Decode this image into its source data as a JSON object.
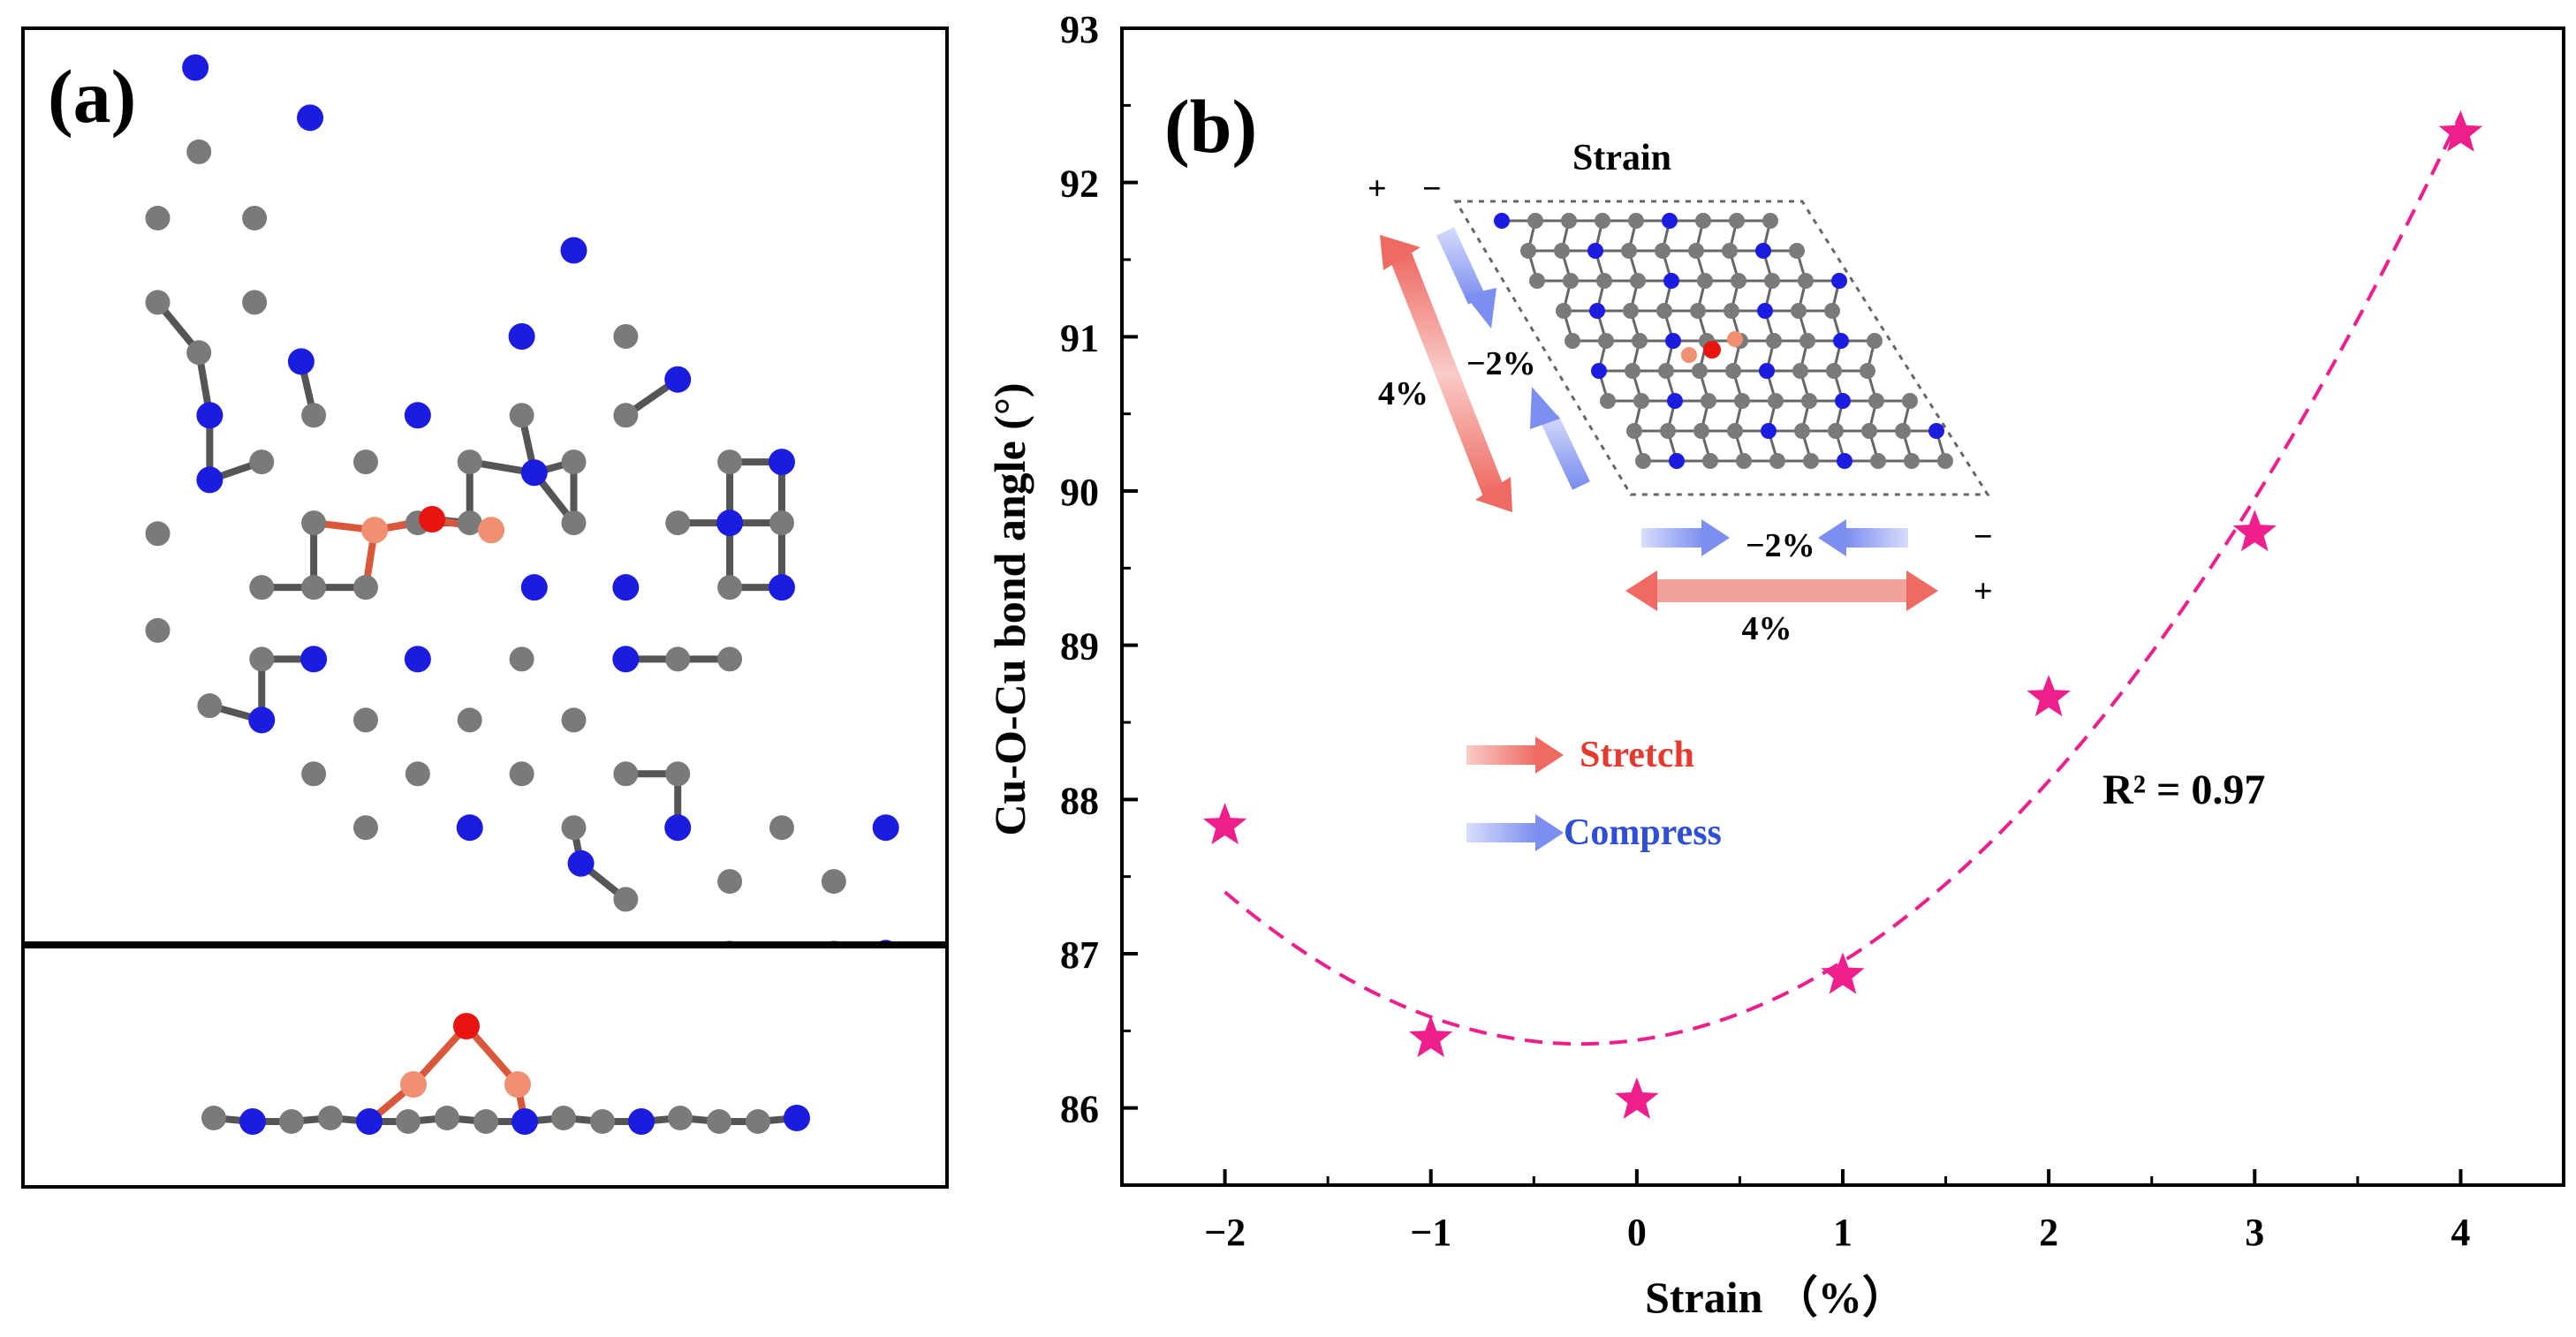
{
  "panel_a": {
    "label": "(a)"
  },
  "panel_b": {
    "label": "(b)"
  },
  "chart_data": {
    "type": "scatter",
    "title": "",
    "xlabel": "Strain （%）",
    "ylabel": "Cu-O-Cu bond angle (°)",
    "xlim": [
      -2.5,
      4.5
    ],
    "ylim": [
      85.5,
      93
    ],
    "x_ticks": [
      -2,
      -1,
      0,
      1,
      2,
      3,
      4
    ],
    "x_tick_labels": [
      "−2",
      "−1",
      "0",
      "1",
      "2",
      "3",
      "4"
    ],
    "y_ticks": [
      86,
      87,
      88,
      89,
      90,
      91,
      92,
      93
    ],
    "y_tick_labels": [
      "86",
      "87",
      "88",
      "89",
      "90",
      "91",
      "92",
      "93"
    ],
    "series": [
      {
        "name": "Cu-O-Cu bond angle",
        "marker": "star",
        "color": "#ee1e8c",
        "x": [
          -2,
          -1,
          0,
          1,
          2,
          3,
          4
        ],
        "values": [
          87.83,
          86.45,
          86.05,
          86.86,
          88.66,
          89.73,
          92.32
        ]
      }
    ],
    "fit": {
      "type": "quadratic",
      "style": "dashed",
      "color": "#ee1e8c",
      "x_range": [
        -2,
        4
      ],
      "coeffs": [
        86.44,
        0.18,
        0.33
      ],
      "r2_label": "R² = 0.97"
    },
    "inset": {
      "title": "Strain",
      "percent_labels": {
        "neg": "−2%",
        "pos": "4%"
      },
      "sign_labels": {
        "plus": "+",
        "minus": "−"
      },
      "legend": [
        {
          "label": "Stretch",
          "color": "#e8392f"
        },
        {
          "label": "Compress",
          "color": "#2f4fd6"
        }
      ]
    }
  },
  "colors": {
    "carbon": "#7a7a7a",
    "nitrogen": "#1c1ce0",
    "copper": "#f08f72",
    "oxygen": "#e8140f",
    "stretch": "#ee6a62",
    "compress": "#7c8ef0"
  }
}
